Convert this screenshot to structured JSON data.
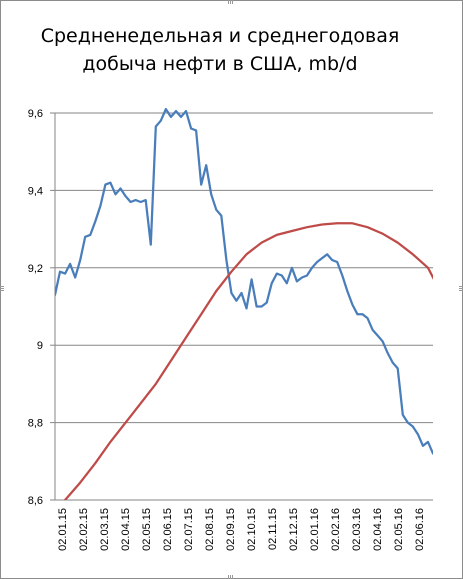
{
  "chart_data": {
    "type": "line",
    "title_lines": [
      "Средненедельная и среднегодовая",
      "добыча нефти в США, mb/d"
    ],
    "ylim": [
      8.6,
      9.6
    ],
    "yticks": [
      "9,6",
      "9,4",
      "9,2",
      "9",
      "8,8",
      "8,6"
    ],
    "ytick_values": [
      9.6,
      9.4,
      9.2,
      9.0,
      8.8,
      8.6
    ],
    "xtick_labels": [
      "02.01.15",
      "02.02.15",
      "02.03.15",
      "02.04.15",
      "02.05.15",
      "02.06.15",
      "02.07.15",
      "02.08.15",
      "02.09.15",
      "02.10.15",
      "02.11.15",
      "02.12.15",
      "02.01.16",
      "02.02.16",
      "02.03.16",
      "02.04.16",
      "02.05.16",
      "02.06.16"
    ],
    "x_range": [
      0,
      75
    ],
    "grid": true,
    "legend": "none",
    "series": [
      {
        "color": "#4a7ebb",
        "x": [
          0,
          1,
          2,
          3,
          4,
          5,
          6,
          7,
          8,
          9,
          10,
          11,
          12,
          13,
          14,
          15,
          16,
          17,
          18,
          19,
          20,
          21,
          22,
          23,
          24,
          25,
          26,
          27,
          28,
          29,
          30,
          31,
          32,
          33,
          34,
          35,
          36,
          37,
          38,
          39,
          40,
          41,
          42,
          43,
          44,
          45,
          46,
          47,
          48,
          49,
          50,
          51,
          52,
          53,
          54,
          55,
          56,
          57,
          58,
          59,
          60,
          61,
          62,
          63,
          64,
          65,
          66,
          67,
          68,
          69,
          70,
          71,
          72,
          73,
          74,
          75
        ],
        "values": [
          9.13,
          9.19,
          9.185,
          9.21,
          9.175,
          9.22,
          9.28,
          9.285,
          9.32,
          9.36,
          9.415,
          9.42,
          9.39,
          9.405,
          9.385,
          9.37,
          9.375,
          9.37,
          9.375,
          9.26,
          9.565,
          9.58,
          9.61,
          9.59,
          9.605,
          9.59,
          9.605,
          9.56,
          9.555,
          9.415,
          9.465,
          9.39,
          9.35,
          9.335,
          9.22,
          9.135,
          9.115,
          9.135,
          9.095,
          9.17,
          9.1,
          9.1,
          9.11,
          9.16,
          9.185,
          9.18,
          9.16,
          9.2,
          9.165,
          9.175,
          9.18,
          9.2,
          9.215,
          9.225,
          9.235,
          9.22,
          9.215,
          9.18,
          9.14,
          9.105,
          9.08,
          9.08,
          9.07,
          9.04,
          9.025,
          9.01,
          8.98,
          8.955,
          8.94,
          8.82,
          8.8,
          8.79,
          8.77,
          8.74,
          8.75,
          8.72
        ]
      },
      {
        "color": "#be4b48",
        "x": [
          2,
          5,
          8,
          11,
          14,
          17,
          20,
          23,
          26,
          29,
          32,
          35,
          38,
          41,
          44,
          47,
          50,
          53,
          56,
          59,
          62,
          65,
          68,
          71,
          74,
          76
        ],
        "values": [
          8.6,
          8.645,
          8.695,
          8.75,
          8.8,
          8.85,
          8.9,
          8.96,
          9.02,
          9.08,
          9.14,
          9.19,
          9.235,
          9.265,
          9.285,
          9.295,
          9.305,
          9.312,
          9.315,
          9.315,
          9.305,
          9.288,
          9.265,
          9.235,
          9.2,
          9.15
        ]
      }
    ]
  }
}
